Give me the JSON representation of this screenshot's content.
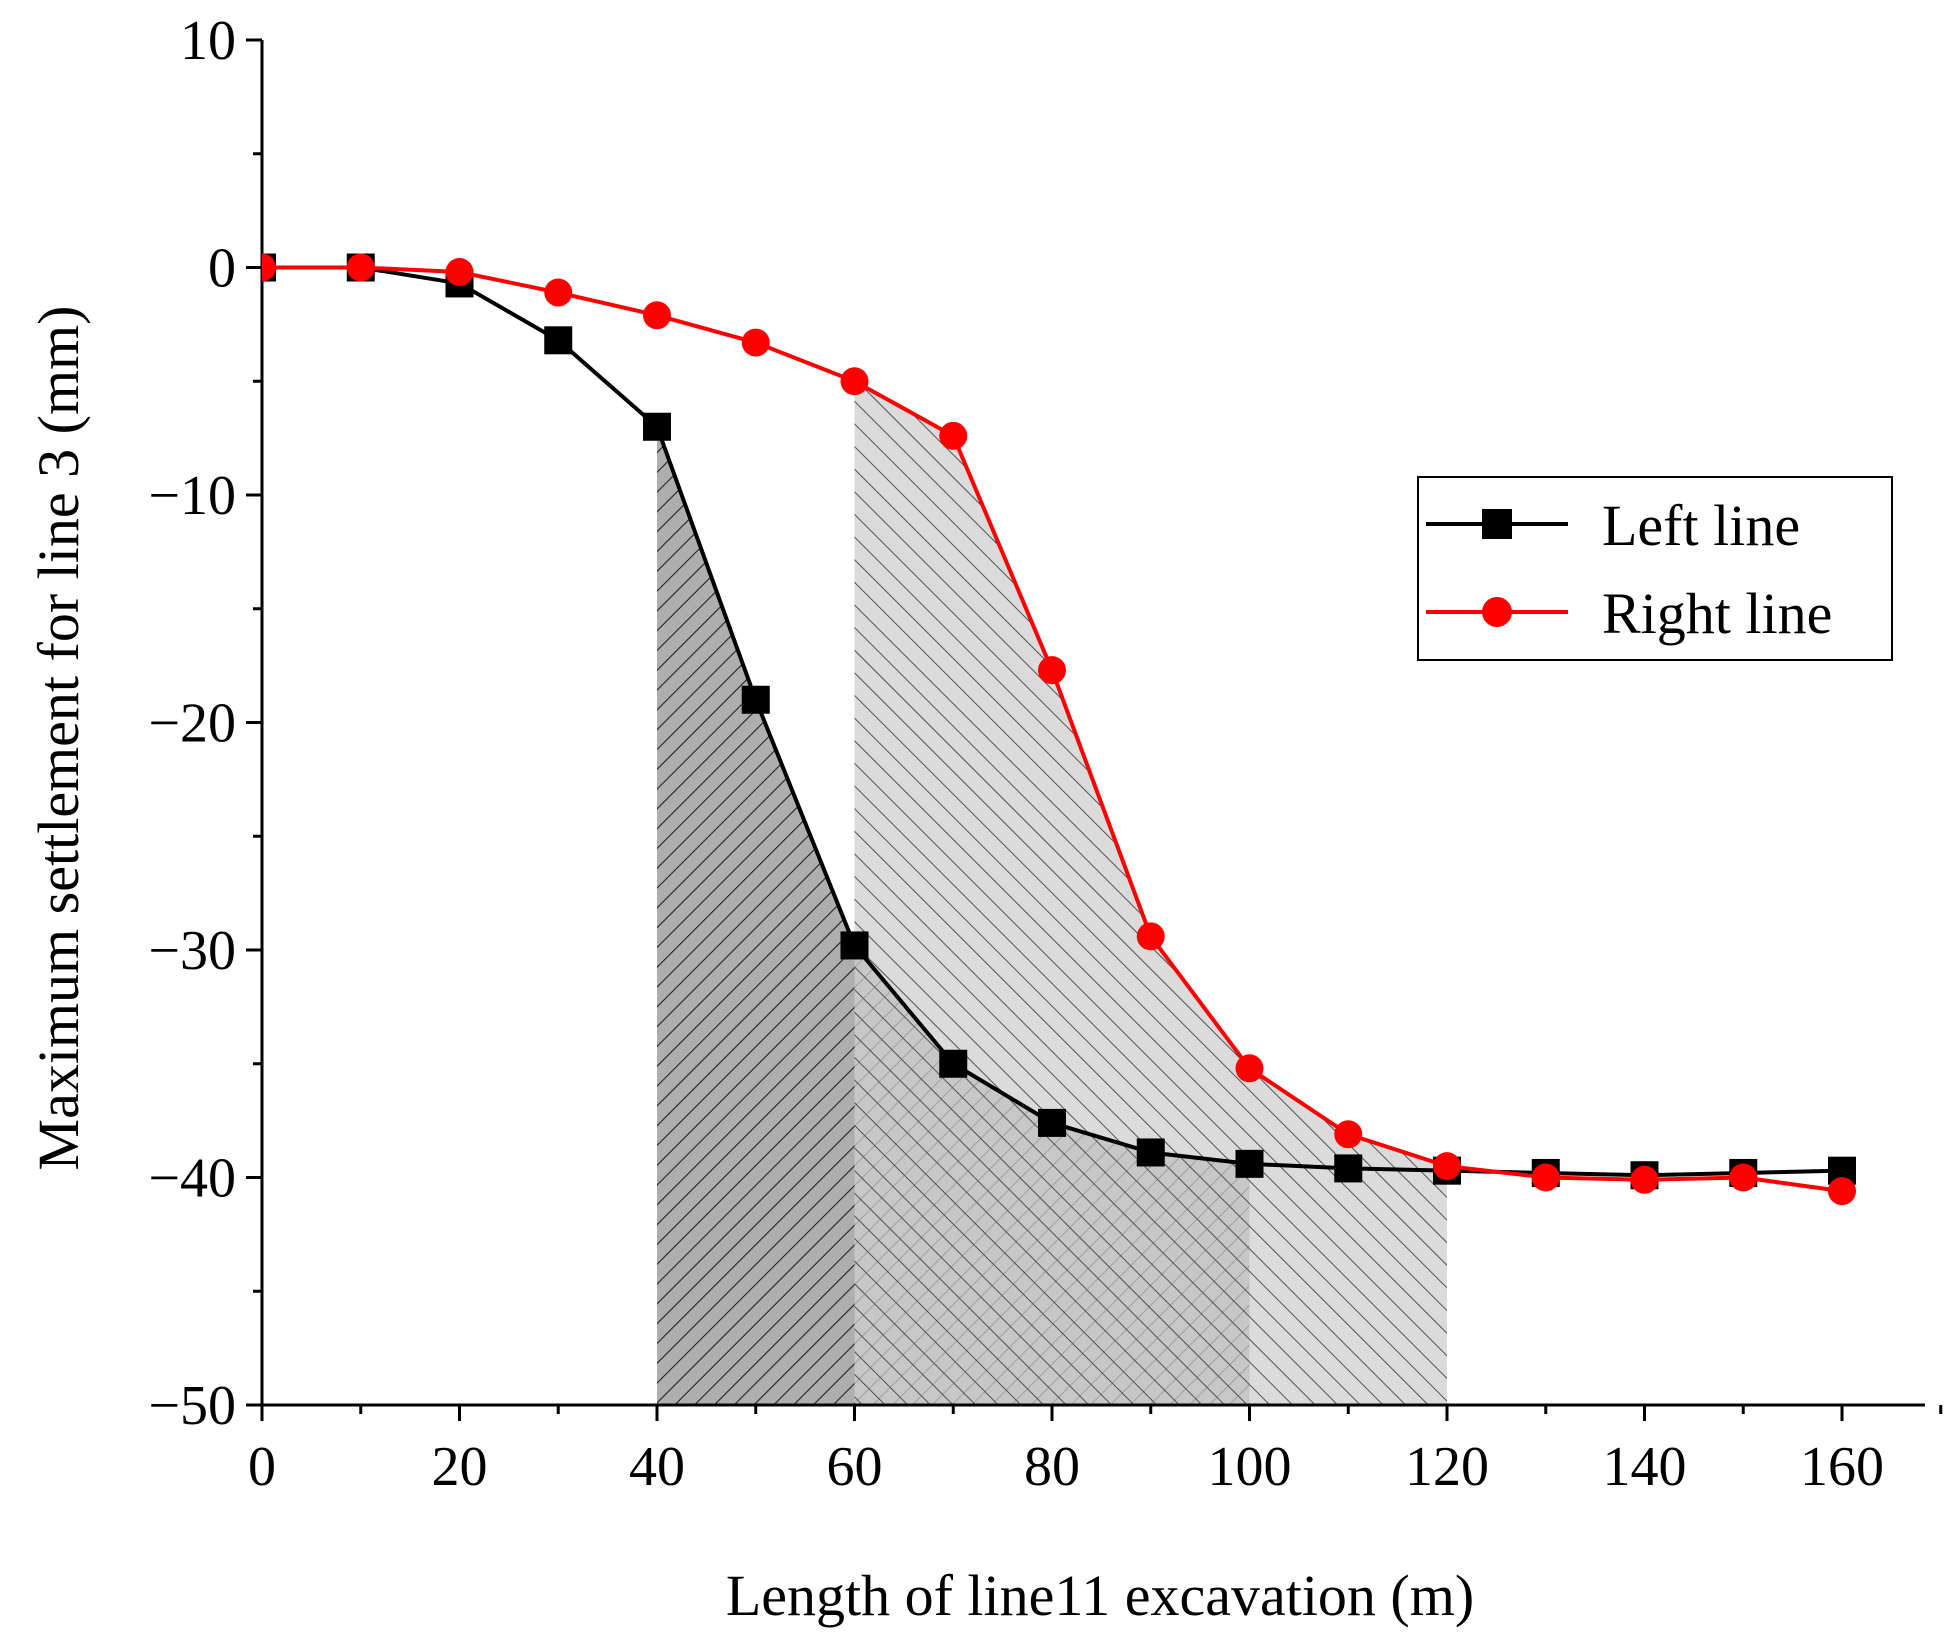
{
  "chart_data": {
    "type": "line",
    "title": "",
    "xlabel": "Length of line11 excavation (m)",
    "ylabel": "Maximum settlement for line 3 (mm)",
    "xlim": [
      0,
      170
    ],
    "ylim": [
      -50,
      10
    ],
    "x_ticks": [
      0,
      20,
      40,
      60,
      80,
      100,
      120,
      140,
      160
    ],
    "x_tick_labels": [
      "0",
      "20",
      "40",
      "60",
      "80",
      "100",
      "120",
      "140",
      "160"
    ],
    "y_ticks": [
      10,
      0,
      -10,
      -20,
      -30,
      -40,
      -50
    ],
    "y_tick_labels": [
      "10",
      "0",
      "−10",
      "−20",
      "−30",
      "−40",
      "−50"
    ],
    "grid": false,
    "legend_position": "right",
    "series": [
      {
        "name": "Left line",
        "color": "#000000",
        "marker": "square",
        "x": [
          0,
          10,
          20,
          30,
          40,
          50,
          60,
          70,
          80,
          90,
          100,
          110,
          120,
          130,
          140,
          150,
          160
        ],
        "y": [
          0,
          0,
          -0.7,
          -3.2,
          -7.0,
          -19.0,
          -29.8,
          -35.0,
          -37.6,
          -38.9,
          -39.4,
          -39.6,
          -39.7,
          -39.8,
          -39.9,
          -39.8,
          -39.7
        ]
      },
      {
        "name": "Right line",
        "color": "#ff0000",
        "marker": "circle",
        "x": [
          0,
          10,
          20,
          30,
          40,
          50,
          60,
          70,
          80,
          90,
          100,
          110,
          120,
          130,
          140,
          150,
          160
        ],
        "y": [
          0,
          0,
          -0.2,
          -1.1,
          -2.1,
          -3.3,
          -5.0,
          -7.4,
          -17.7,
          -29.4,
          -35.2,
          -38.1,
          -39.5,
          -40.0,
          -40.1,
          -40.0,
          -40.6
        ]
      }
    ],
    "shaded_regions": [
      {
        "series": "Left line",
        "x_start": 40,
        "x_end": 100,
        "fill": "#a0a0a0",
        "hatch": "forward-diagonal"
      },
      {
        "series": "Right line",
        "x_start": 60,
        "x_end": 120,
        "fill": "#cfcfcf",
        "hatch": "back-diagonal"
      }
    ]
  }
}
